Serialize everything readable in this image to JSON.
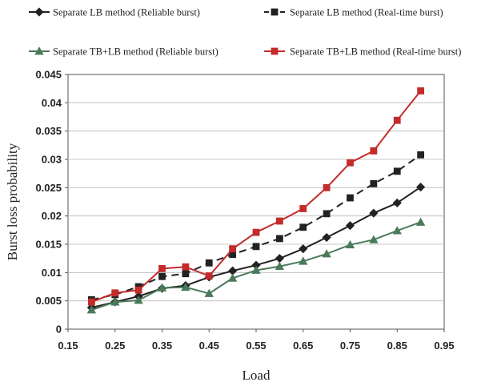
{
  "chart_data": {
    "type": "line",
    "xlabel": "Load",
    "ylabel": "Burst loss probability",
    "xlim": [
      0.15,
      0.95
    ],
    "ylim": [
      0,
      0.045
    ],
    "xticks": [
      "0.15",
      "0.25",
      "0.35",
      "0.45",
      "0.55",
      "0.65",
      "0.75",
      "0.85",
      "0.95"
    ],
    "yticks": [
      "0",
      "0.005",
      "0.01",
      "0.015",
      "0.02",
      "0.025",
      "0.03",
      "0.035",
      "0.04",
      "0.045"
    ],
    "grid": "horizontal",
    "legend_position": "top",
    "x": [
      0.2,
      0.25,
      0.3,
      0.35,
      0.4,
      0.45,
      0.5,
      0.55,
      0.6,
      0.65,
      0.7,
      0.75,
      0.8,
      0.85,
      0.9
    ],
    "series": [
      {
        "name": "Separate LB method (Reliable burst)",
        "color": "#222222",
        "marker": "diamond",
        "dash": "solid",
        "values": [
          0.0038,
          0.0048,
          0.0058,
          0.0072,
          0.0077,
          0.0092,
          0.0103,
          0.0113,
          0.0125,
          0.0142,
          0.0162,
          0.0183,
          0.0205,
          0.0223,
          0.0251
        ]
      },
      {
        "name": "Separate LB method (Real-time burst)",
        "color": "#222222",
        "marker": "square",
        "dash": "dashed",
        "values": [
          0.0052,
          0.0061,
          0.0075,
          0.0093,
          0.0098,
          0.0117,
          0.0132,
          0.0146,
          0.016,
          0.018,
          0.0204,
          0.0232,
          0.0257,
          0.0279,
          0.0308
        ]
      },
      {
        "name": "Separate TB+LB method (Reliable burst)",
        "color": "#4a7a5a",
        "marker": "triangle",
        "dash": "solid",
        "values": [
          0.0034,
          0.0048,
          0.0051,
          0.0073,
          0.0074,
          0.0063,
          0.009,
          0.0104,
          0.0111,
          0.012,
          0.0133,
          0.0149,
          0.0158,
          0.0174,
          0.0189
        ]
      },
      {
        "name": "Separate TB+LB method (Real-time burst)",
        "color": "#c42b2b",
        "marker": "square",
        "dash": "solid",
        "values": [
          0.0048,
          0.0064,
          0.0069,
          0.0107,
          0.011,
          0.0094,
          0.0142,
          0.0171,
          0.0191,
          0.0213,
          0.025,
          0.0294,
          0.0315,
          0.0369,
          0.0421
        ]
      }
    ]
  }
}
